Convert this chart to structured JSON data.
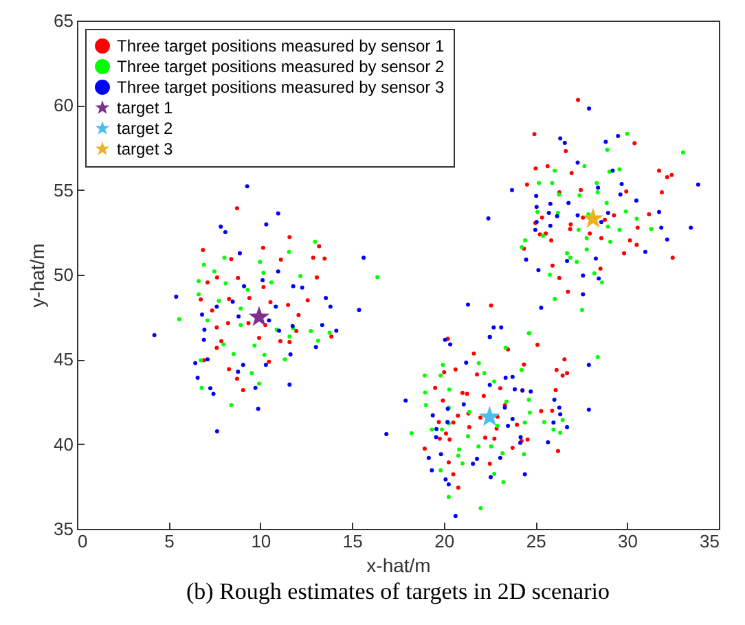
{
  "chart_data": {
    "type": "scatter",
    "xlabel": "x-hat/m",
    "ylabel": "y-hat/m",
    "annotations": [
      "(b) Rough estimates of targets in 2D scenario"
    ],
    "xlim": [
      0,
      35
    ],
    "ylim": [
      35,
      65
    ],
    "xticks": [
      0,
      5,
      10,
      15,
      20,
      25,
      30,
      35
    ],
    "yticks": [
      35,
      40,
      45,
      50,
      55,
      60,
      65
    ],
    "legend": "top left",
    "marker": "circle",
    "series": [
      {
        "name": "Three target positions measured by sensor 1",
        "color": "#ff0000",
        "x": [
          8.73,
          11.59,
          13.2,
          6.87,
          8.41,
          10.15,
          11.12,
          12.88,
          13.5,
          8.78,
          7.12,
          7.64,
          10.17,
          13.08,
          6.75,
          8.29,
          9.4,
          10.55,
          11.51,
          12.58,
          7.37,
          12.08,
          7.62,
          8.24,
          9.35,
          10.27,
          11.96,
          9.93,
          11.09,
          11.59,
          7.87,
          7.62,
          6.92,
          10.47,
          8.29,
          8.73,
          9.06,
          13.87,
          20.22,
          23.5,
          25.11,
          21.64,
          20.64,
          20.02,
          21.81,
          24.37,
          26.58,
          26.15,
          26.48,
          26.72,
          19.53,
          21.02,
          21.27,
          22.18,
          23.08,
          24.29,
          26.1,
          19.95,
          23.33,
          20.77,
          21.34,
          22.0,
          22.93,
          19.73,
          20.52,
          21.39,
          23.99,
          25.31,
          25.91,
          20.12,
          19.78,
          20.32,
          22.26,
          22.76,
          24.24,
          24.57,
          18.96,
          23.75,
          26.23,
          20.27,
          22.51,
          20.52,
          20.79,
          22.88,
          27.32,
          24.94,
          30.4,
          26.65,
          25.01,
          25.66,
          26.97,
          24.54,
          26.3,
          27.47,
          31.74,
          32.18,
          32.43,
          31.89,
          29.95,
          25.36,
          24.99,
          26.92,
          27.59,
          28.78,
          29.28,
          31.19,
          25.24,
          25.56,
          26.89,
          27.96,
          30.57,
          30.15,
          30.52,
          29.83,
          24.37,
          25.86,
          28.59,
          25.93,
          26.3,
          28.54,
          32.48,
          26.77,
          22.58
        ],
        "values": [
          53.92,
          52.22,
          51.68,
          51.46,
          50.92,
          51.59,
          50.89,
          51.0,
          50.95,
          49.81,
          49.54,
          49.84,
          49.27,
          49.84,
          48.54,
          48.57,
          48.62,
          48.38,
          48.22,
          48.49,
          47.89,
          47.62,
          46.89,
          47.14,
          47.14,
          47.03,
          46.68,
          46.27,
          46.08,
          46.03,
          46.08,
          45.68,
          44.95,
          44.86,
          44.43,
          43.86,
          43.19,
          46.35,
          46.22,
          45.59,
          45.86,
          45.35,
          44.41,
          44.24,
          44.11,
          44.7,
          45.0,
          44.38,
          44.05,
          44.19,
          43.32,
          43.03,
          42.97,
          42.84,
          43.3,
          43.19,
          43.19,
          42.57,
          42.3,
          41.68,
          41.81,
          41.57,
          41.62,
          41.3,
          41.27,
          41.0,
          41.14,
          41.95,
          41.97,
          40.62,
          40.32,
          40.27,
          40.38,
          40.32,
          40.19,
          40.27,
          39.73,
          39.78,
          39.59,
          38.92,
          38.84,
          38.22,
          37.43,
          40.92,
          60.32,
          58.3,
          57.76,
          57.3,
          56.27,
          56.41,
          56.0,
          55.32,
          54.86,
          55.0,
          56.14,
          55.76,
          55.89,
          54.86,
          54.92,
          53.38,
          53.05,
          52.97,
          53.38,
          53.24,
          53.51,
          53.57,
          52.38,
          52.43,
          52.7,
          52.43,
          52.78,
          52.03,
          51.76,
          51.27,
          51.54,
          52.03,
          52.16,
          50.54,
          49.81,
          50.35,
          51.0,
          49.0,
          48.19
        ]
      },
      {
        "name": "Three target positions measured by sensor 2",
        "color": "#00ff00",
        "x": [
          12.98,
          11.56,
          6.92,
          8.04,
          9.98,
          7.49,
          12.18,
          6.63,
          8.11,
          9.31,
          10.17,
          10.6,
          6.63,
          7.74,
          8.93,
          5.58,
          7.12,
          8.93,
          11.79,
          12.75,
          13.77,
          13.15,
          11.59,
          10.89,
          7.99,
          8.54,
          9.68,
          10.22,
          11.34,
          6.75,
          9.53,
          9.93,
          6.8,
          8.41,
          16.38,
          24.64,
          23.37,
          19.95,
          21.91,
          18.96,
          19.83,
          20.3,
          22.21,
          24.24,
          22.75,
          18.98,
          19.03,
          20.27,
          23.42,
          24.64,
          24.69,
          21.39,
          19.35,
          19.9,
          20.27,
          22.93,
          18.24,
          21.32,
          24.42,
          25.48,
          26.48,
          25.98,
          26.35,
          21.89,
          20.84,
          20.79,
          21.02,
          22.58,
          23.2,
          24.37,
          23.25,
          22.01,
          20.27,
          19.83,
          28.39,
          22.75,
          30.0,
          28.91,
          33.05,
          27.67,
          26.05,
          29.03,
          29.58,
          25.19,
          25.91,
          28.34,
          26.28,
          27.4,
          28.88,
          28.39,
          25.11,
          26.23,
          27.89,
          29.93,
          30.52,
          29.58,
          28.96,
          27.35,
          31.31,
          24.44,
          25.41,
          27.79,
          29.08,
          26.72,
          26.9,
          27.25,
          27.79,
          28.21,
          28.63,
          25.78,
          26.05,
          27.54,
          24.67,
          24.25
        ],
        "values": [
          51.95,
          51.35,
          50.59,
          51.0,
          50.76,
          50.19,
          49.92,
          49.62,
          49.49,
          49.11,
          50.11,
          49.54,
          48.84,
          48.46,
          48.0,
          47.38,
          47.3,
          47.03,
          46.84,
          46.68,
          46.57,
          46.11,
          46.35,
          46.76,
          45.89,
          45.32,
          45.81,
          45.27,
          45.0,
          44.95,
          44.19,
          43.57,
          43.32,
          42.3,
          49.86,
          46.54,
          45.68,
          44.68,
          44.78,
          44.05,
          44.05,
          43.22,
          44.19,
          44.38,
          43.7,
          43.05,
          42.3,
          42.16,
          42.51,
          42.62,
          41.86,
          41.89,
          40.86,
          40.86,
          41.22,
          41.08,
          40.65,
          40.46,
          41.27,
          41.3,
          41.43,
          40.86,
          40.68,
          39.86,
          39.68,
          39.32,
          38.86,
          39.86,
          39.46,
          39.41,
          37.76,
          36.22,
          36.89,
          38.46,
          45.14,
          38.24,
          58.32,
          57.38,
          57.22,
          56.41,
          56.14,
          56.08,
          56.22,
          55.41,
          55.41,
          55.41,
          54.73,
          54.68,
          54.24,
          54.86,
          53.7,
          53.65,
          53.57,
          53.73,
          53.3,
          52.65,
          52.84,
          52.65,
          52.7,
          52.03,
          52.3,
          52.16,
          51.95,
          51.27,
          51.0,
          50.76,
          51.49,
          50.08,
          49.54,
          50.0,
          48.57,
          47.92,
          46.54,
          51.62
        ]
      },
      {
        "name": "Three target positions measured by sensor 3",
        "color": "#0000ff",
        "x": [
          9.28,
          10.97,
          7.84,
          8.09,
          10.32,
          8.88,
          10.97,
          11.79,
          12.28,
          9.11,
          10.12,
          5.41,
          13.57,
          8.49,
          7.62,
          10.84,
          13.82,
          15.38,
          6.82,
          10.47,
          8.81,
          6.95,
          11.76,
          13.37,
          14.14,
          11.02,
          6.92,
          13.03,
          11.64,
          6.45,
          7.12,
          9.06,
          10.3,
          8.78,
          6.58,
          7.27,
          7.44,
          9.73,
          11.59,
          9.88,
          7.64,
          4.22,
          15.63,
          23.13,
          20.07,
          20.35,
          22.51,
          21.22,
          23.37,
          23.75,
          22.51,
          23.87,
          24.29,
          24.74,
          17.92,
          26.03,
          26.3,
          26.35,
          25.98,
          26.72,
          27.91,
          27.91,
          20.22,
          21.09,
          23.33,
          19.4,
          23.75,
          23.5,
          20.2,
          19.6,
          19.58,
          24.19,
          24.17,
          25.68,
          16.87,
          19.18,
          19.85,
          21.81,
          21.59,
          23.08,
          19.35,
          20.1,
          20.27,
          22.56,
          24.42,
          20.64,
          27.92,
          26.35,
          26.6,
          28.83,
          29.5,
          27.3,
          29.21,
          29.7,
          23.72,
          28.41,
          29.63,
          30.5,
          33.87,
          25.04,
          25.06,
          25.81,
          26.8,
          25.73,
          26.18,
          27.3,
          28.59,
          28.96,
          25.06,
          24.99,
          31.74,
          31.86,
          33.47,
          32.18,
          25.81,
          24.49,
          25.16,
          26.72,
          28.29,
          27.59,
          28.45,
          30.99,
          22.43,
          27.59,
          25.31,
          21.32,
          22.72,
          22.51
        ],
        "values": [
          55.22,
          53.62,
          52.84,
          52.51,
          52.97,
          51.27,
          50.19,
          49.32,
          49.24,
          49.32,
          49.68,
          48.7,
          48.62,
          48.41,
          48.11,
          48.11,
          48.11,
          47.92,
          47.65,
          47.3,
          47.54,
          46.76,
          46.97,
          47.03,
          46.7,
          46.7,
          46.16,
          45.73,
          45.3,
          44.78,
          45.0,
          44.68,
          44.68,
          44.27,
          43.92,
          43.3,
          42.97,
          43.32,
          43.51,
          42.08,
          40.76,
          46.43,
          51.0,
          46.89,
          46.16,
          45.89,
          46.32,
          44.81,
          43.92,
          43.97,
          43.49,
          43.24,
          43.16,
          43.11,
          42.57,
          42.62,
          42.16,
          41.76,
          41.27,
          41.0,
          42.03,
          44.68,
          42.08,
          42.35,
          42.16,
          41.7,
          41.49,
          41.08,
          41.3,
          40.89,
          40.41,
          40.41,
          40.08,
          40.11,
          40.59,
          39.19,
          39.41,
          39.14,
          38.84,
          39.19,
          38.46,
          37.92,
          37.62,
          38.05,
          38.22,
          35.76,
          59.81,
          58.05,
          57.78,
          57.84,
          58.19,
          56.62,
          56.14,
          55.35,
          55.0,
          55.14,
          54.73,
          54.38,
          55.32,
          54.65,
          54.0,
          54.19,
          54.24,
          53.65,
          53.46,
          53.51,
          53.11,
          53.65,
          53.11,
          52.65,
          53.7,
          52.78,
          52.78,
          52.08,
          52.89,
          50.89,
          50.27,
          50.81,
          50.95,
          49.95,
          49.78,
          51.35,
          53.32,
          48.84,
          48.05,
          48.24,
          46.89,
          46.32
        ]
      },
      {
        "name": "target 1",
        "color": "#7e2f8e",
        "marker": "star",
        "x": [
          9.93
        ],
        "values": [
          47.5
        ]
      },
      {
        "name": "target 2",
        "color": "#4dbeee",
        "marker": "star",
        "x": [
          22.5
        ],
        "values": [
          41.6
        ]
      },
      {
        "name": "target 3",
        "color": "#edb120",
        "marker": "star",
        "x": [
          28.14
        ],
        "values": [
          53.3
        ]
      }
    ]
  }
}
